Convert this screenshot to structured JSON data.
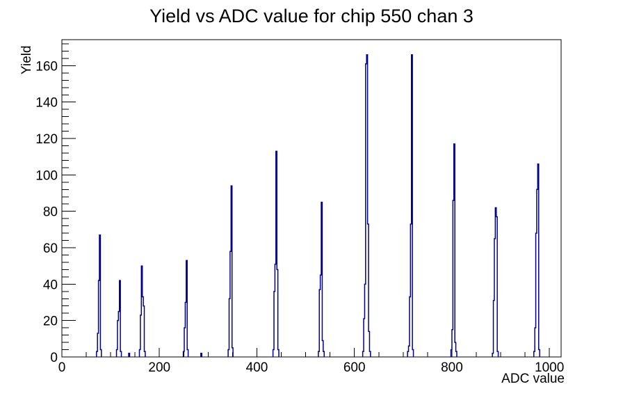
{
  "chart_data": {
    "type": "histogram",
    "title": "Yield vs ADC value for chip 550 chan 3",
    "xlabel": "ADC value",
    "ylabel": "Yield",
    "x_range": [
      0,
      1024
    ],
    "y_range": [
      0,
      174.3
    ],
    "x_major_ticks": [
      0,
      200,
      400,
      600,
      800,
      1000
    ],
    "x_minor_tick_step": 50,
    "y_major_ticks": [
      0,
      20,
      40,
      60,
      80,
      100,
      120,
      140,
      160
    ],
    "y_minor_tick_step": 4,
    "grid": false,
    "legend": false,
    "line_color": "#00008c",
    "axis_color": "#000000",
    "background_color": "#ffffff",
    "bin_width_adc": 2,
    "peaks": [
      {
        "center_adc": 77,
        "peak_yield": 67,
        "bins": [
          [
            71,
            3
          ],
          [
            73,
            13
          ],
          [
            75,
            42
          ],
          [
            77,
            67
          ],
          [
            79,
            4
          ]
        ]
      },
      {
        "center_adc": 118,
        "peak_yield": 42,
        "bins": [
          [
            112,
            4
          ],
          [
            114,
            20
          ],
          [
            116,
            25
          ],
          [
            118,
            42
          ],
          [
            120,
            3
          ]
        ]
      },
      {
        "center_adc": 163,
        "peak_yield": 50,
        "bins": [
          [
            159,
            4
          ],
          [
            161,
            23
          ],
          [
            163,
            50
          ],
          [
            165,
            33
          ],
          [
            167,
            28
          ],
          [
            169,
            3
          ]
        ]
      },
      {
        "center_adc": 255,
        "peak_yield": 53,
        "bins": [
          [
            249,
            3
          ],
          [
            251,
            16
          ],
          [
            253,
            30
          ],
          [
            255,
            53
          ],
          [
            257,
            4
          ]
        ]
      },
      {
        "center_adc": 347,
        "peak_yield": 94,
        "bins": [
          [
            341,
            4
          ],
          [
            343,
            32
          ],
          [
            345,
            58
          ],
          [
            347,
            94
          ],
          [
            349,
            5
          ]
        ]
      },
      {
        "center_adc": 439,
        "peak_yield": 113,
        "bins": [
          [
            433,
            4
          ],
          [
            435,
            36
          ],
          [
            437,
            51
          ],
          [
            439,
            113
          ],
          [
            441,
            48
          ],
          [
            443,
            4
          ]
        ]
      },
      {
        "center_adc": 532,
        "peak_yield": 85,
        "bins": [
          [
            526,
            3
          ],
          [
            528,
            37
          ],
          [
            530,
            45
          ],
          [
            532,
            85
          ],
          [
            534,
            9
          ],
          [
            536,
            3
          ]
        ]
      },
      {
        "center_adc": 625,
        "peak_yield": 166,
        "bins": [
          [
            617,
            3
          ],
          [
            619,
            21
          ],
          [
            621,
            40
          ],
          [
            623,
            161
          ],
          [
            625,
            166
          ],
          [
            627,
            73
          ],
          [
            629,
            14
          ],
          [
            631,
            3
          ]
        ]
      },
      {
        "center_adc": 717,
        "peak_yield": 166,
        "bins": [
          [
            709,
            3
          ],
          [
            711,
            6
          ],
          [
            713,
            33
          ],
          [
            715,
            73
          ],
          [
            717,
            166
          ],
          [
            719,
            4
          ]
        ]
      },
      {
        "center_adc": 804,
        "peak_yield": 117,
        "bins": [
          [
            798,
            4
          ],
          [
            800,
            15
          ],
          [
            802,
            86
          ],
          [
            804,
            117
          ],
          [
            806,
            8
          ],
          [
            808,
            3
          ]
        ]
      },
      {
        "center_adc": 890,
        "peak_yield": 82,
        "bins": [
          [
            883,
            2
          ],
          [
            885,
            31
          ],
          [
            887,
            65
          ],
          [
            889,
            82
          ],
          [
            891,
            77
          ],
          [
            893,
            3
          ]
        ]
      },
      {
        "center_adc": 976,
        "peak_yield": 106,
        "bins": [
          [
            968,
            3
          ],
          [
            970,
            16
          ],
          [
            972,
            68
          ],
          [
            974,
            92
          ],
          [
            976,
            106
          ],
          [
            978,
            4
          ]
        ]
      }
    ],
    "small_bumps": [
      [
        137,
        2
      ],
      [
        285,
        2
      ]
    ]
  }
}
